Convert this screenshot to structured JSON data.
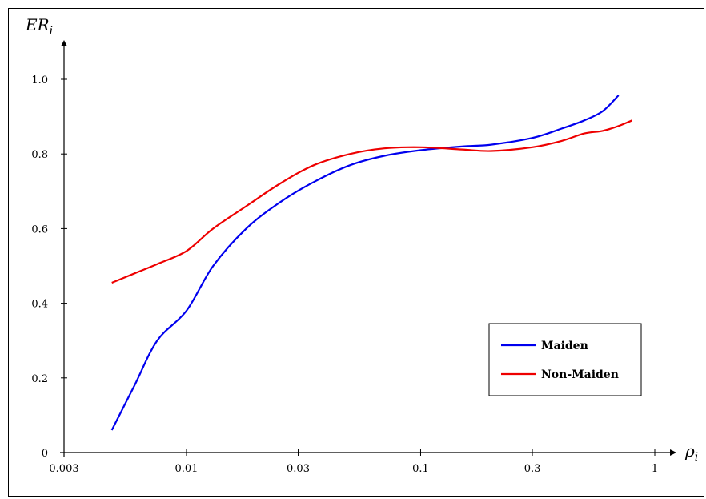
{
  "chart_data": {
    "type": "line",
    "xlabel": "ρ_i",
    "ylabel": "ER_i",
    "x_scale": "log",
    "xlim": [
      0.003,
      1
    ],
    "ylim": [
      0,
      1.1
    ],
    "x_ticks": [
      0.003,
      0.01,
      0.03,
      0.1,
      0.3,
      1
    ],
    "x_tick_labels": [
      "0.003",
      "0.01",
      "0.03",
      "0.1",
      "0.3",
      "1"
    ],
    "y_ticks": [
      0,
      0.2,
      0.4,
      0.6,
      0.8,
      1.0
    ],
    "y_tick_labels": [
      "0",
      "0.2",
      "0.4",
      "0.6",
      "0.8",
      "1.0"
    ],
    "grid": false,
    "legend_position": "lower-right",
    "series": [
      {
        "name": "Maiden",
        "color": "#0000ee",
        "x": [
          0.0048,
          0.006,
          0.0075,
          0.01,
          0.013,
          0.018,
          0.025,
          0.035,
          0.05,
          0.07,
          0.1,
          0.15,
          0.2,
          0.3,
          0.4,
          0.5,
          0.6,
          0.7
        ],
        "y": [
          0.06,
          0.18,
          0.3,
          0.38,
          0.5,
          0.6,
          0.67,
          0.725,
          0.77,
          0.795,
          0.81,
          0.82,
          0.825,
          0.843,
          0.868,
          0.89,
          0.915,
          0.957
        ]
      },
      {
        "name": "Non-Maiden",
        "color": "#ee0000",
        "x": [
          0.0048,
          0.006,
          0.0075,
          0.01,
          0.013,
          0.018,
          0.025,
          0.035,
          0.05,
          0.07,
          0.1,
          0.15,
          0.2,
          0.3,
          0.4,
          0.5,
          0.6,
          0.7,
          0.8
        ],
        "y": [
          0.455,
          0.48,
          0.505,
          0.54,
          0.6,
          0.66,
          0.72,
          0.77,
          0.8,
          0.815,
          0.818,
          0.812,
          0.808,
          0.818,
          0.835,
          0.855,
          0.862,
          0.875,
          0.89
        ]
      }
    ]
  }
}
